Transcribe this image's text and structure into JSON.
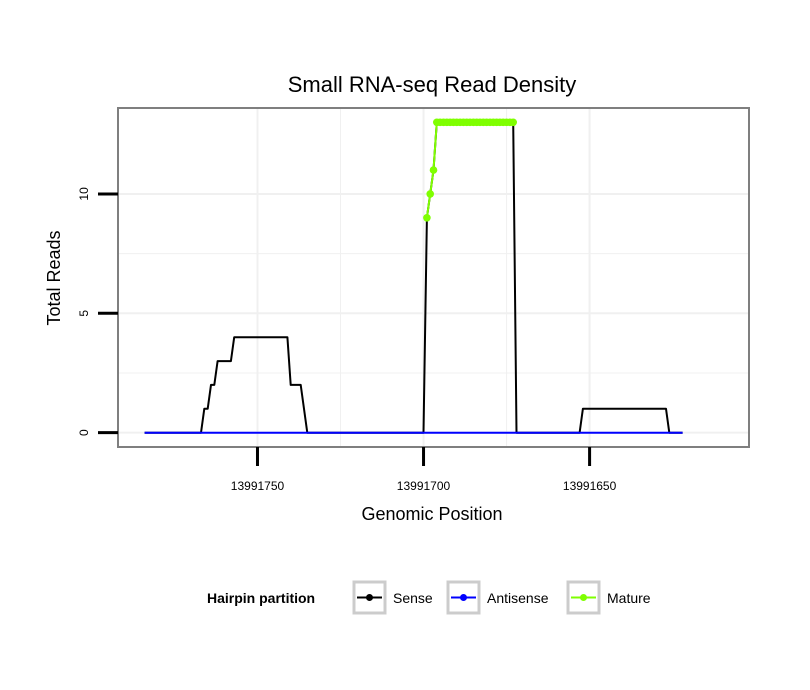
{
  "chart_data": {
    "type": "line",
    "title": "Small RNA-seq Read Density",
    "xlabel": "Genomic Position",
    "ylabel": "Total Reads",
    "x_reversed": true,
    "xlim": [
      13991792,
      13991602
    ],
    "ylim": [
      -0.6,
      13.6
    ],
    "x_ticks": [
      13991750,
      13991700,
      13991650
    ],
    "x_tick_labels": [
      "13991750",
      "13991700",
      "13991650"
    ],
    "y_ticks": [
      0,
      5,
      10
    ],
    "y_tick_labels": [
      "0",
      "5",
      "10"
    ],
    "grid": true,
    "legend": {
      "title": "Hairpin partition",
      "position": "bottom",
      "entries": [
        "Sense",
        "Antisense",
        "Mature"
      ]
    },
    "series": [
      {
        "name": "Sense",
        "color": "#000000",
        "points": [
          [
            13991784,
            0
          ],
          [
            13991767,
            0
          ],
          [
            13991766,
            1
          ],
          [
            13991765,
            1
          ],
          [
            13991764,
            2
          ],
          [
            13991763,
            2
          ],
          [
            13991762,
            3
          ],
          [
            13991758,
            3
          ],
          [
            13991757,
            4
          ],
          [
            13991741,
            4
          ],
          [
            13991740,
            2
          ],
          [
            13991737,
            2
          ],
          [
            13991735,
            0
          ],
          [
            13991700,
            0
          ],
          [
            13991699,
            9
          ],
          [
            13991698,
            10
          ],
          [
            13991697,
            11
          ],
          [
            13991696,
            13
          ],
          [
            13991673,
            13
          ],
          [
            13991672,
            0
          ],
          [
            13991653,
            0
          ],
          [
            13991652,
            1
          ],
          [
            13991627,
            1
          ],
          [
            13991626,
            0
          ],
          [
            13991622,
            0
          ]
        ]
      },
      {
        "name": "Antisense",
        "color": "#0000ff",
        "points": [
          [
            13991784,
            0
          ],
          [
            13991622,
            0
          ]
        ]
      },
      {
        "name": "Mature",
        "color": "#7fff00",
        "points": [
          [
            13991699,
            9
          ],
          [
            13991698,
            10
          ],
          [
            13991697,
            11
          ],
          [
            13991696,
            13
          ],
          [
            13991695,
            13
          ],
          [
            13991694,
            13
          ],
          [
            13991693,
            13
          ],
          [
            13991692,
            13
          ],
          [
            13991691,
            13
          ],
          [
            13991690,
            13
          ],
          [
            13991689,
            13
          ],
          [
            13991688,
            13
          ],
          [
            13991687,
            13
          ],
          [
            13991686,
            13
          ],
          [
            13991685,
            13
          ],
          [
            13991684,
            13
          ],
          [
            13991683,
            13
          ],
          [
            13991682,
            13
          ],
          [
            13991681,
            13
          ],
          [
            13991680,
            13
          ],
          [
            13991679,
            13
          ],
          [
            13991678,
            13
          ],
          [
            13991677,
            13
          ],
          [
            13991676,
            13
          ],
          [
            13991675,
            13
          ],
          [
            13991674,
            13
          ],
          [
            13991673,
            13
          ]
        ]
      }
    ]
  },
  "colors": {
    "panel_border": "#7f7f7f",
    "grid_major": "#f0f0f0",
    "legend_key_border": "#cccccc"
  }
}
